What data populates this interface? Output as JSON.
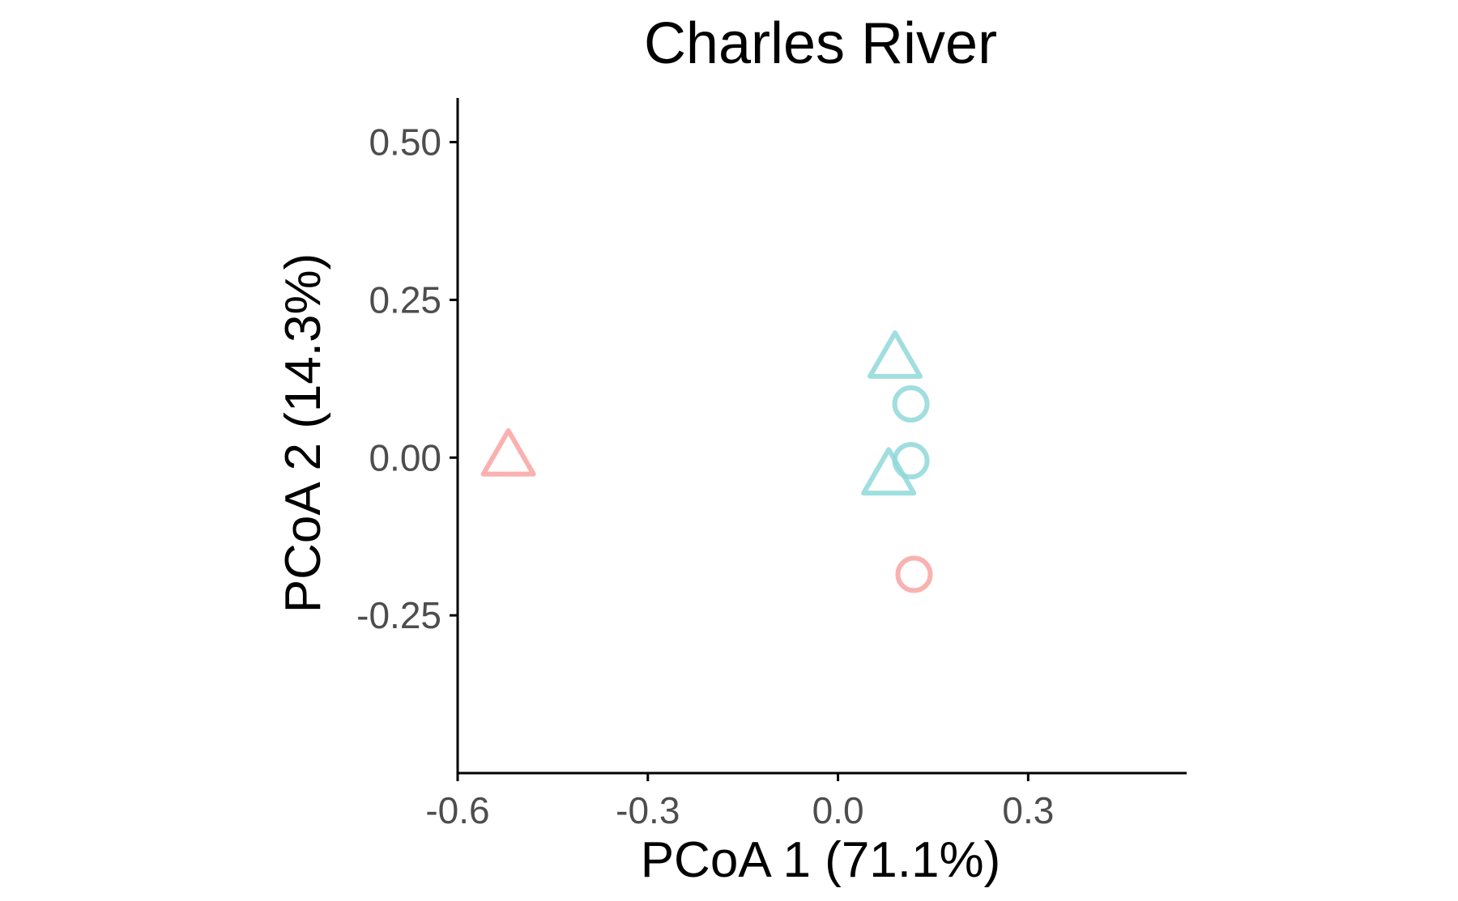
{
  "chart_data": {
    "type": "scatter",
    "title": "Charles River",
    "xlabel": "PCoA 1 (71.1%)",
    "ylabel": "PCoA 2 (14.3%)",
    "xlim": [
      -0.6,
      0.55
    ],
    "ylim": [
      -0.5,
      0.57
    ],
    "xticks": [
      -0.6,
      -0.3,
      0.0,
      0.3
    ],
    "xtick_labels": [
      "-0.6",
      "-0.3",
      "0.0",
      "0.3"
    ],
    "yticks": [
      0.5,
      0.25,
      0.0,
      -0.25
    ],
    "ytick_labels": [
      "0.50",
      "0.25",
      "0.00",
      "-0.25"
    ],
    "grid": false,
    "legend": "none",
    "colors": {
      "group_a": "#f8a5a2",
      "group_b": "#8fd8d9"
    },
    "points": [
      {
        "x": -0.52,
        "y": 0.0,
        "shape": "triangle",
        "color": "#f8a5a2"
      },
      {
        "x": 0.12,
        "y": -0.185,
        "shape": "circle",
        "color": "#f8a5a2"
      },
      {
        "x": 0.09,
        "y": 0.155,
        "shape": "triangle",
        "color": "#8fd8d9"
      },
      {
        "x": 0.115,
        "y": 0.085,
        "shape": "circle",
        "color": "#8fd8d9"
      },
      {
        "x": 0.115,
        "y": -0.005,
        "shape": "circle",
        "color": "#8fd8d9"
      },
      {
        "x": 0.08,
        "y": -0.03,
        "shape": "triangle",
        "color": "#8fd8d9"
      }
    ]
  }
}
